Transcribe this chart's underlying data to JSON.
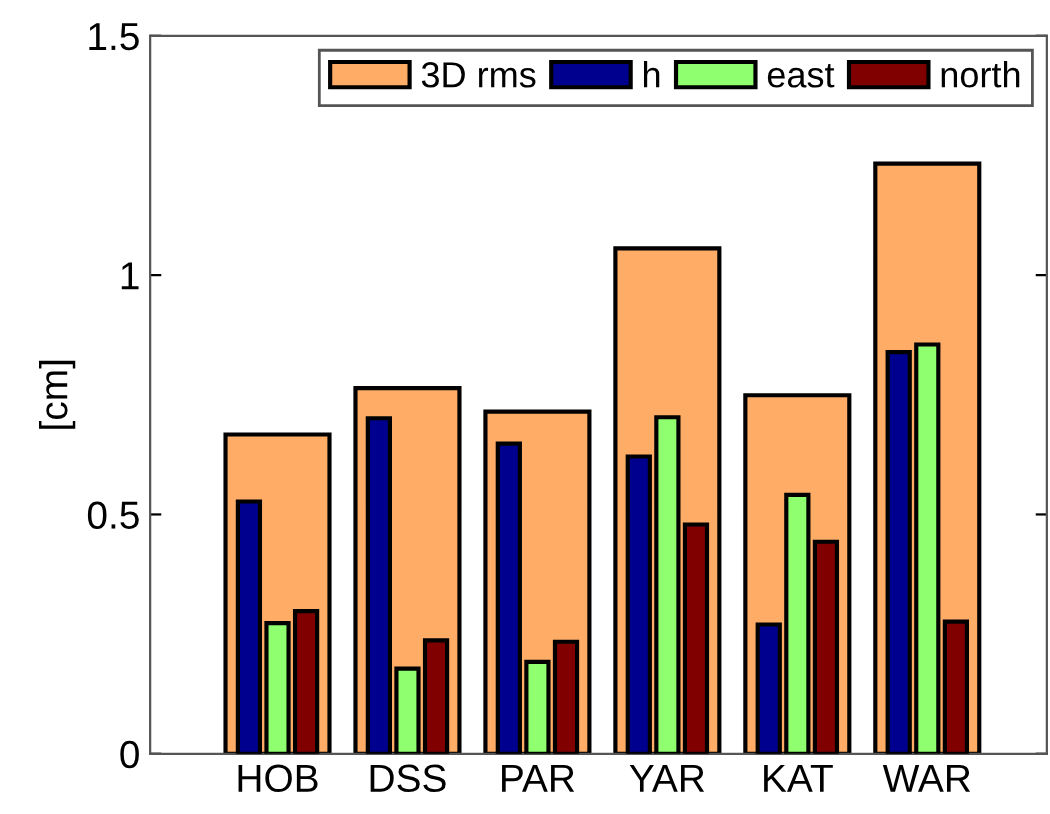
{
  "chart_data": {
    "type": "bar",
    "ylabel": "[cm]",
    "categories": [
      "HOB",
      "DSS",
      "PAR",
      "YAR",
      "KAT",
      "WAR"
    ],
    "series": [
      {
        "name": "3D rms",
        "color": "#ffad66",
        "values": [
          0.667,
          0.764,
          0.715,
          1.056,
          0.749,
          1.233
        ]
      },
      {
        "name": "h",
        "color": "#00008f",
        "values": [
          0.527,
          0.701,
          0.648,
          0.621,
          0.27,
          0.839
        ]
      },
      {
        "name": "east",
        "color": "#8fff6f",
        "values": [
          0.273,
          0.178,
          0.192,
          0.703,
          0.541,
          0.855
        ]
      },
      {
        "name": "north",
        "color": "#800000",
        "values": [
          0.298,
          0.237,
          0.234,
          0.479,
          0.443,
          0.276
        ]
      }
    ],
    "ylim": [
      0,
      1.5
    ],
    "yticks": [
      0,
      0.5,
      1,
      1.5
    ],
    "grid": false,
    "legend": "top right"
  }
}
